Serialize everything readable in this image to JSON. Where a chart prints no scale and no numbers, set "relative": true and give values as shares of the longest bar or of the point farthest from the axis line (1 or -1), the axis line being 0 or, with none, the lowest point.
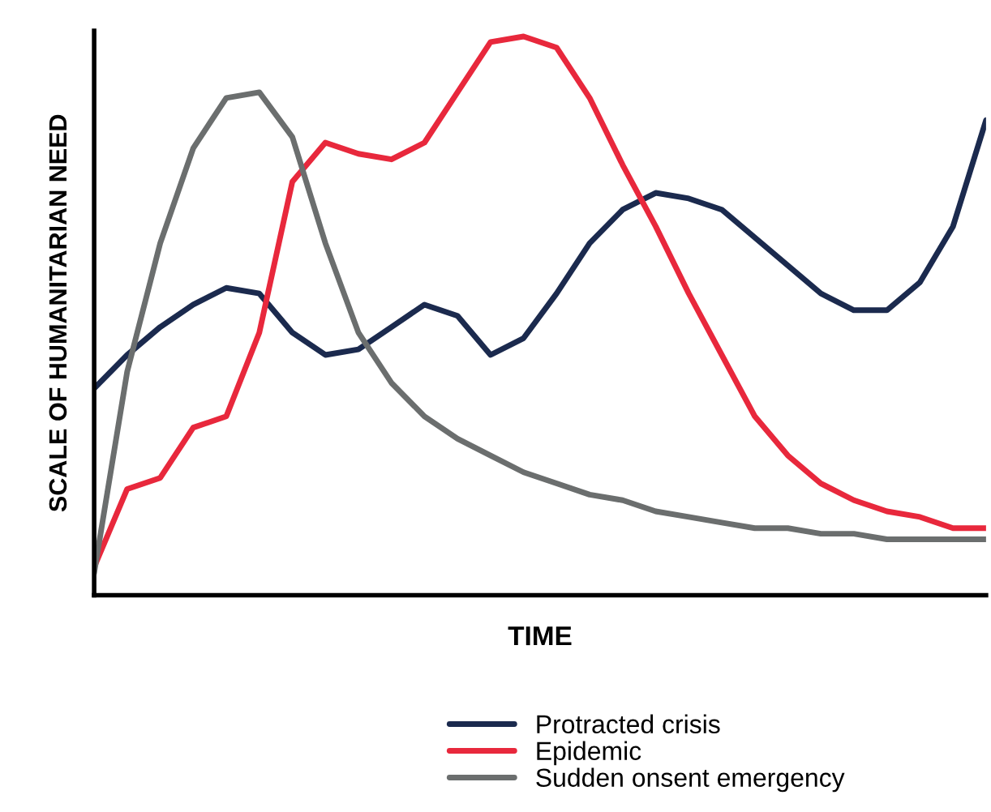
{
  "chart_data": {
    "type": "line",
    "relative": true,
    "xlabel": "TIME",
    "ylabel": "SCALE OF HUMANITARIAN NEED",
    "legend": "bottom",
    "marker": "none",
    "line_style": "solid",
    "grid": false,
    "categories": [
      null,
      null,
      null,
      null,
      null,
      null,
      null,
      null,
      null,
      null,
      null,
      null,
      null,
      null,
      null,
      null,
      null,
      null,
      null,
      null,
      null,
      null,
      null,
      null,
      null,
      null,
      null,
      null
    ],
    "series": [
      {
        "name": "Protracted crisis",
        "color": "#1b2a4e",
        "values": [
          0.37,
          0.43,
          0.48,
          0.52,
          0.55,
          0.54,
          0.47,
          0.43,
          0.44,
          0.48,
          0.52,
          0.5,
          0.43,
          0.46,
          0.54,
          0.63,
          0.69,
          0.72,
          0.71,
          0.69,
          0.64,
          0.59,
          0.54,
          0.51,
          0.51,
          0.56,
          0.66,
          0.85
        ]
      },
      {
        "name": "Epidemic",
        "color": "#e8283c",
        "values": [
          0.05,
          0.19,
          0.21,
          0.3,
          0.32,
          0.47,
          0.74,
          0.81,
          0.79,
          0.78,
          0.81,
          0.9,
          0.99,
          1.0,
          0.98,
          0.89,
          0.77,
          0.66,
          0.54,
          0.43,
          0.32,
          0.25,
          0.2,
          0.17,
          0.15,
          0.14,
          0.12,
          0.12
        ]
      },
      {
        "name": "Sudden onsent emergency",
        "color": "#6b6e6e",
        "values": [
          0.04,
          0.4,
          0.63,
          0.8,
          0.89,
          0.9,
          0.82,
          0.63,
          0.47,
          0.38,
          0.32,
          0.28,
          0.25,
          0.22,
          0.2,
          0.18,
          0.17,
          0.15,
          0.14,
          0.13,
          0.12,
          0.12,
          0.11,
          0.11,
          0.1,
          0.1,
          0.1,
          0.1
        ]
      }
    ]
  }
}
